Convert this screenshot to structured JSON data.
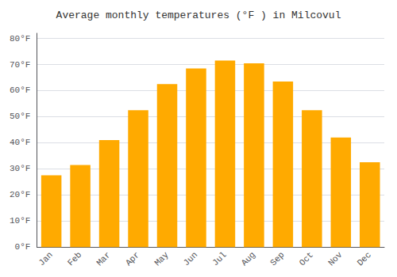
{
  "chart_data": {
    "type": "bar",
    "title": "Average monthly temperatures (°F ) in Milcovul",
    "categories": [
      "Jan",
      "Feb",
      "Mar",
      "Apr",
      "May",
      "Jun",
      "Jul",
      "Aug",
      "Sep",
      "Oct",
      "Nov",
      "Dec"
    ],
    "values": [
      27.5,
      31.5,
      41.0,
      52.5,
      62.5,
      68.5,
      71.5,
      70.5,
      63.5,
      52.5,
      42.0,
      32.5
    ],
    "color": "#FFAA00",
    "ylim": [
      0,
      82
    ],
    "yticks": [
      {
        "value": 0,
        "label": "0°F"
      },
      {
        "value": 10,
        "label": "10°F"
      },
      {
        "value": 20,
        "label": "20°F"
      },
      {
        "value": 30,
        "label": "30°F"
      },
      {
        "value": 40,
        "label": "40°F"
      },
      {
        "value": 50,
        "label": "50°F"
      },
      {
        "value": 60,
        "label": "60°F"
      },
      {
        "value": 70,
        "label": "70°F"
      },
      {
        "value": 80,
        "label": "80°F"
      }
    ],
    "grid": true
  }
}
